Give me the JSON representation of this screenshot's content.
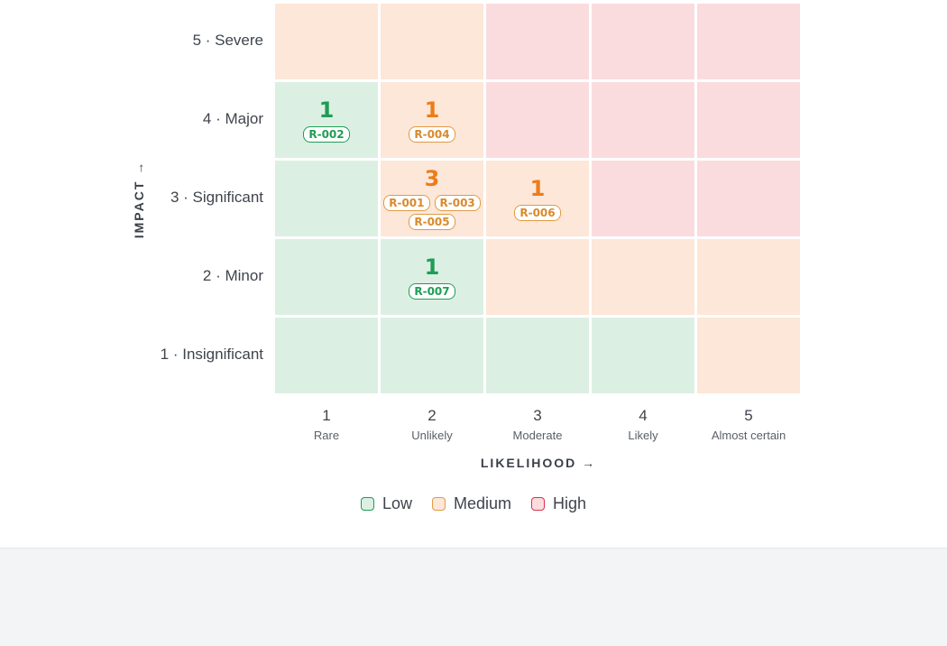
{
  "chart_data": {
    "type": "heatmap",
    "x_axis_title": "LIKELIHOOD →",
    "y_axis_title": "IMPACT →",
    "likelihood": [
      {
        "value": 1,
        "label": "Rare"
      },
      {
        "value": 2,
        "label": "Unlikely"
      },
      {
        "value": 3,
        "label": "Moderate"
      },
      {
        "value": 4,
        "label": "Likely"
      },
      {
        "value": 5,
        "label": "Almost certain"
      }
    ],
    "impact": [
      {
        "value": 5,
        "label": "5 · Severe"
      },
      {
        "value": 4,
        "label": "4 · Major"
      },
      {
        "value": 3,
        "label": "3 · Significant"
      },
      {
        "value": 2,
        "label": "2 · Minor"
      },
      {
        "value": 1,
        "label": "1 · Insignificant"
      }
    ],
    "levels": [
      [
        "medium",
        "medium",
        "high",
        "high",
        "high"
      ],
      [
        "low",
        "medium",
        "high",
        "high",
        "high"
      ],
      [
        "low",
        "medium",
        "medium",
        "high",
        "high"
      ],
      [
        "low",
        "low",
        "medium",
        "medium",
        "medium"
      ],
      [
        "low",
        "low",
        "low",
        "low",
        "medium"
      ]
    ],
    "risks": [
      {
        "impact": 4,
        "likelihood": 1,
        "ids": [
          "R-002"
        ]
      },
      {
        "impact": 4,
        "likelihood": 2,
        "ids": [
          "R-004"
        ]
      },
      {
        "impact": 3,
        "likelihood": 2,
        "ids": [
          "R-001",
          "R-003",
          "R-005"
        ]
      },
      {
        "impact": 3,
        "likelihood": 3,
        "ids": [
          "R-006"
        ]
      },
      {
        "impact": 2,
        "likelihood": 2,
        "ids": [
          "R-007"
        ]
      }
    ],
    "legend": [
      {
        "key": "low",
        "label": "Low"
      },
      {
        "key": "medium",
        "label": "Medium"
      },
      {
        "key": "high",
        "label": "High"
      }
    ],
    "colors": {
      "low_fill": "#dcefe3",
      "medium_fill": "#fde7d8",
      "high_fill": "#fadcde",
      "low_text": "#1f9d55",
      "medium_text": "#ea7d1c",
      "high_text": "#d9344a"
    }
  }
}
